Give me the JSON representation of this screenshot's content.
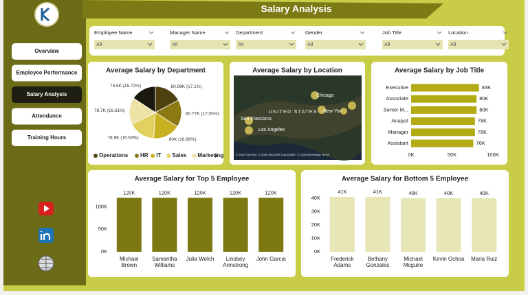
{
  "header": {
    "title": "Salary Analysis"
  },
  "nav": {
    "items": [
      "Overview",
      "Employee Performance",
      "Salary Analysis",
      "Attendance",
      "Training Hours"
    ]
  },
  "filters": [
    {
      "label": "Employee Name",
      "value": "All"
    },
    {
      "label": "Manager Name",
      "value": "All"
    },
    {
      "label": "Department",
      "value": "All"
    },
    {
      "label": "Gender",
      "value": "All"
    },
    {
      "label": "Job Title",
      "value": "All"
    },
    {
      "label": "Location",
      "value": "All"
    }
  ],
  "chart_data": [
    {
      "type": "pie",
      "title": "Average Salary by Department",
      "categories": [
        "Operations",
        "HR",
        "IT",
        "Sales",
        "Marketing",
        null
      ],
      "values": [
        80990,
        80770,
        80000,
        78800,
        78700,
        74500
      ],
      "value_labels": [
        "80.99K (17.1%)",
        "80.77K (17.05%)",
        "80K (16.89%)",
        "78.8K (16.63%)",
        "78.7K (16.61%)",
        "74.5K (15.72%)"
      ],
      "colors": [
        "#4f4210",
        "#8b7a14",
        "#c8b020",
        "#e2d160",
        "#eee2a6",
        "#1b190e"
      ]
    },
    {
      "type": "map",
      "title": "Average Salary by Location",
      "country": "UNITED STATES",
      "places": [
        "Chicago",
        "New York",
        "San Francisco",
        "Los Angeles"
      ],
      "attribution": "© 2025 TomTom, © 2025 Microsoft Corporation, © OpenStreetMap Terms"
    },
    {
      "type": "hbar",
      "title": "Average Salary by Job Title",
      "categories": [
        "Executive",
        "Associate",
        "Senior M...",
        "Analyst",
        "Manager",
        "Assistant"
      ],
      "values": [
        83000,
        80000,
        80000,
        78000,
        78000,
        76000
      ],
      "value_labels": [
        "83K",
        "80K",
        "80K",
        "78K",
        "78K",
        "76K"
      ],
      "color": "#b3ab14",
      "xlim": [
        0,
        100000
      ],
      "xticks": [
        {
          "value": 0,
          "label": "0K"
        },
        {
          "value": 50000,
          "label": "50K"
        },
        {
          "value": 100000,
          "label": "100K"
        }
      ]
    },
    {
      "type": "bar",
      "title": "Average Salary for Top 5 Employee",
      "categories": [
        "Michael Brown",
        "Samantha Williams",
        "Julia Welch",
        "Lindsey Armstrong",
        "John Garcia"
      ],
      "values": [
        120000,
        120000,
        120000,
        120000,
        120000
      ],
      "value_labels": [
        "120K",
        "120K",
        "120K",
        "120K",
        "120K"
      ],
      "color": "#7d7812",
      "ylim": [
        0,
        125000
      ],
      "yticks": [
        {
          "value": 0,
          "label": "0K"
        },
        {
          "value": 50000,
          "label": "50K"
        },
        {
          "value": 100000,
          "label": "100K"
        }
      ]
    },
    {
      "type": "bar",
      "title": "Average Salary for Bottom 5 Employee",
      "categories": [
        "Frederick Adams",
        "Bethany Gonzales",
        "Michael Mcguire",
        "Kevin Ochoa",
        "Maria Ruiz"
      ],
      "values": [
        41000,
        41000,
        40000,
        40000,
        40000
      ],
      "value_labels": [
        "41K",
        "41K",
        "40K",
        "40K",
        "40K"
      ],
      "color": "#e7e6b6",
      "ylim": [
        0,
        42000
      ],
      "yticks": [
        {
          "value": 0,
          "label": "0K"
        },
        {
          "value": 10000,
          "label": "10K"
        },
        {
          "value": 20000,
          "label": "20K"
        },
        {
          "value": 30000,
          "label": "30K"
        },
        {
          "value": 40000,
          "label": "40K"
        }
      ]
    }
  ]
}
